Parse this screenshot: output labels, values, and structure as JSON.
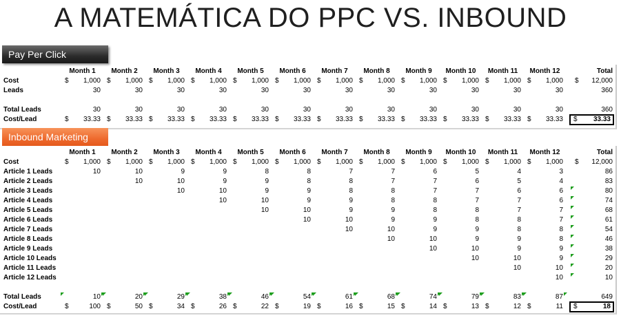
{
  "title": "A MATEMÁTICA DO PPC VS. INBOUND",
  "ppc": {
    "header": "Pay Per Click",
    "months": [
      "Month 1",
      "Month 2",
      "Month 3",
      "Month 4",
      "Month 5",
      "Month 6",
      "Month 7",
      "Month 8",
      "Month 9",
      "Month 10",
      "Month 11",
      "Month 12"
    ],
    "total_label": "Total",
    "currency": "$",
    "rows": [
      {
        "label": "Cost",
        "dollar": true,
        "values": [
          "1,000",
          "1,000",
          "1,000",
          "1,000",
          "1,000",
          "1,000",
          "1,000",
          "1,000",
          "1,000",
          "1,000",
          "1,000",
          "1,000"
        ],
        "total": "12,000"
      },
      {
        "label": "Leads",
        "dollar": false,
        "values": [
          "30",
          "30",
          "30",
          "30",
          "30",
          "30",
          "30",
          "30",
          "30",
          "30",
          "30",
          "30"
        ],
        "total": "360"
      },
      {
        "label": "",
        "dollar": false,
        "values": [
          "",
          "",
          "",
          "",
          "",
          "",
          "",
          "",
          "",
          "",
          "",
          ""
        ],
        "total": ""
      },
      {
        "label": "Total Leads",
        "dollar": false,
        "values": [
          "30",
          "30",
          "30",
          "30",
          "30",
          "30",
          "30",
          "30",
          "30",
          "30",
          "30",
          "30"
        ],
        "total": "360"
      },
      {
        "label": "Cost/Lead",
        "dollar": true,
        "values": [
          "33.33",
          "33.33",
          "33.33",
          "33.33",
          "33.33",
          "33.33",
          "33.33",
          "33.33",
          "33.33",
          "33.33",
          "33.33",
          "33.33"
        ],
        "total": "33.33",
        "boxed": true
      }
    ]
  },
  "inbound": {
    "header": "Inbound Marketing",
    "months": [
      "Month 1",
      "Month 2",
      "Month 3",
      "Month 4",
      "Month 5",
      "Month 6",
      "Month 7",
      "Month 8",
      "Month 9",
      "Month 10",
      "Month 11",
      "Month 12"
    ],
    "total_label": "Total",
    "currency": "$",
    "rows": [
      {
        "label": "Cost",
        "dollar": true,
        "values": [
          "1,000",
          "1,000",
          "1,000",
          "1,000",
          "1,000",
          "1,000",
          "1,000",
          "1,000",
          "1,000",
          "1,000",
          "1,000",
          "1,000"
        ],
        "total": "12,000"
      },
      {
        "label": "Article 1 Leads",
        "dollar": false,
        "values": [
          "10",
          "10",
          "9",
          "9",
          "8",
          "8",
          "7",
          "7",
          "6",
          "5",
          "4",
          "3"
        ],
        "total": "86"
      },
      {
        "label": "Article 2 Leads",
        "dollar": false,
        "values": [
          "",
          "10",
          "10",
          "9",
          "9",
          "8",
          "8",
          "7",
          "7",
          "6",
          "5",
          "4"
        ],
        "total": "83"
      },
      {
        "label": "Article 3 Leads",
        "dollar": false,
        "values": [
          "",
          "",
          "10",
          "10",
          "9",
          "9",
          "8",
          "8",
          "7",
          "7",
          "6",
          "6"
        ],
        "total": "80",
        "mark_total": true
      },
      {
        "label": "Article 4 Leads",
        "dollar": false,
        "values": [
          "",
          "",
          "",
          "10",
          "10",
          "9",
          "9",
          "8",
          "8",
          "7",
          "7",
          "6"
        ],
        "total": "74",
        "mark_total": true
      },
      {
        "label": "Article 5 Leads",
        "dollar": false,
        "values": [
          "",
          "",
          "",
          "",
          "10",
          "10",
          "9",
          "9",
          "8",
          "8",
          "7",
          "7"
        ],
        "total": "68",
        "mark_total": true
      },
      {
        "label": "Article 6 Leads",
        "dollar": false,
        "values": [
          "",
          "",
          "",
          "",
          "",
          "10",
          "10",
          "9",
          "9",
          "8",
          "8",
          "7"
        ],
        "total": "61",
        "mark_total": true
      },
      {
        "label": "Article 7 Leads",
        "dollar": false,
        "values": [
          "",
          "",
          "",
          "",
          "",
          "",
          "10",
          "10",
          "9",
          "9",
          "8",
          "8"
        ],
        "total": "54",
        "mark_total": true
      },
      {
        "label": "Article 8 Leads",
        "dollar": false,
        "values": [
          "",
          "",
          "",
          "",
          "",
          "",
          "",
          "10",
          "10",
          "9",
          "9",
          "8"
        ],
        "total": "46",
        "mark_total": true
      },
      {
        "label": "Article 9 Leads",
        "dollar": false,
        "values": [
          "",
          "",
          "",
          "",
          "",
          "",
          "",
          "",
          "10",
          "10",
          "9",
          "9"
        ],
        "total": "38",
        "mark_total": true
      },
      {
        "label": "Article 10 Leads",
        "dollar": false,
        "values": [
          "",
          "",
          "",
          "",
          "",
          "",
          "",
          "",
          "",
          "10",
          "10",
          "9"
        ],
        "total": "29",
        "mark_total": true
      },
      {
        "label": "Article 11 Leads",
        "dollar": false,
        "values": [
          "",
          "",
          "",
          "",
          "",
          "",
          "",
          "",
          "",
          "",
          "10",
          "10"
        ],
        "total": "20",
        "mark_total": true
      },
      {
        "label": "Article 12 Leads",
        "dollar": false,
        "values": [
          "",
          "",
          "",
          "",
          "",
          "",
          "",
          "",
          "",
          "",
          "",
          "10"
        ],
        "total": "10",
        "mark_total": true
      },
      {
        "label": "",
        "dollar": false,
        "values": [
          "",
          "",
          "",
          "",
          "",
          "",
          "",
          "",
          "",
          "",
          "",
          ""
        ],
        "total": ""
      },
      {
        "label": "Total Leads",
        "dollar": false,
        "mark_values": true,
        "values": [
          "10",
          "20",
          "29",
          "38",
          "46",
          "54",
          "61",
          "68",
          "74",
          "79",
          "83",
          "87"
        ],
        "total": "649"
      },
      {
        "label": "Cost/Lead",
        "dollar": true,
        "values": [
          "100",
          "50",
          "34",
          "26",
          "22",
          "19",
          "16",
          "15",
          "14",
          "13",
          "12",
          "11"
        ],
        "total": "18",
        "boxed": true
      }
    ]
  }
}
